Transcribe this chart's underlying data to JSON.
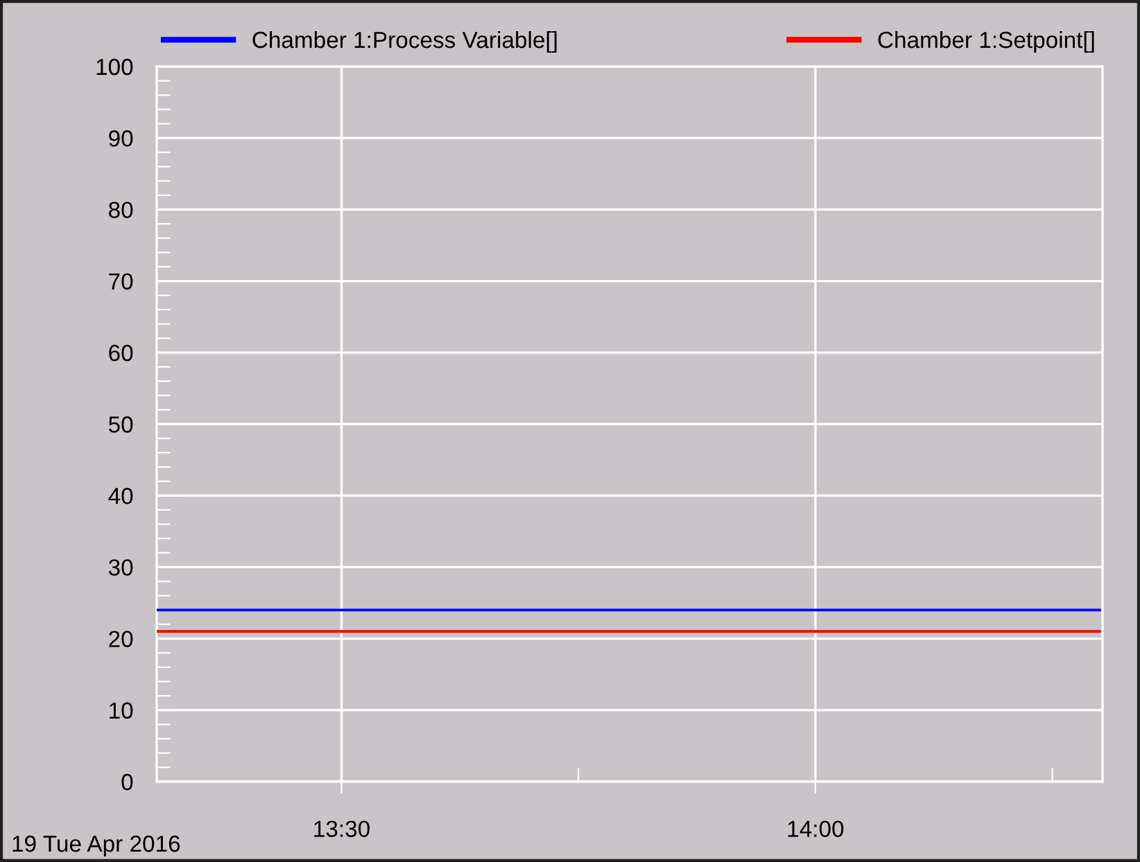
{
  "chart_data": {
    "type": "line",
    "x": [
      13.305,
      14.3
    ],
    "series": [
      {
        "name": "Chamber 1:Process Variable[]",
        "color": "#0000ff",
        "values": [
          24,
          24
        ]
      },
      {
        "name": "Chamber 1:Setpoint[]",
        "color": "#ff0000",
        "values": [
          21,
          21
        ]
      }
    ],
    "xlim": [
      13.305,
      14.303
    ],
    "xticks": [
      {
        "value": 13.5,
        "label": "13:30"
      },
      {
        "value": 13.75,
        "label": null
      },
      {
        "value": 14.0,
        "label": "14:00"
      },
      {
        "value": 14.25,
        "label": null
      }
    ],
    "ylim": [
      0,
      100
    ],
    "yticks": [
      0,
      {
        "value": 2,
        "label": null
      },
      {
        "value": 4,
        "label": null
      },
      {
        "value": 6,
        "label": null
      },
      {
        "value": 8,
        "label": null
      },
      10,
      {
        "value": 12,
        "label": null
      },
      {
        "value": 14,
        "label": null
      },
      {
        "value": 16,
        "label": null
      },
      {
        "value": 18,
        "label": null
      },
      20,
      {
        "value": 22,
        "label": null
      },
      {
        "value": 24,
        "label": null
      },
      {
        "value": 26,
        "label": null
      },
      {
        "value": 28,
        "label": null
      },
      30,
      {
        "value": 32,
        "label": null
      },
      {
        "value": 34,
        "label": null
      },
      {
        "value": 36,
        "label": null
      },
      {
        "value": 38,
        "label": null
      },
      40,
      {
        "value": 42,
        "label": null
      },
      {
        "value": 44,
        "label": null
      },
      {
        "value": 46,
        "label": null
      },
      {
        "value": 48,
        "label": null
      },
      50,
      {
        "value": 52,
        "label": null
      },
      {
        "value": 54,
        "label": null
      },
      {
        "value": 56,
        "label": null
      },
      {
        "value": 58,
        "label": null
      },
      60,
      {
        "value": 62,
        "label": null
      },
      {
        "value": 64,
        "label": null
      },
      {
        "value": 66,
        "label": null
      },
      {
        "value": 68,
        "label": null
      },
      70,
      {
        "value": 72,
        "label": null
      },
      {
        "value": 74,
        "label": null
      },
      {
        "value": 76,
        "label": null
      },
      {
        "value": 78,
        "label": null
      },
      80,
      {
        "value": 82,
        "label": null
      },
      {
        "value": 84,
        "label": null
      },
      {
        "value": 86,
        "label": null
      },
      {
        "value": 88,
        "label": null
      },
      90,
      {
        "value": 92,
        "label": null
      },
      {
        "value": 94,
        "label": null
      },
      {
        "value": 96,
        "label": null
      },
      {
        "value": 98,
        "label": null
      },
      100
    ],
    "grid": true,
    "legend": "top",
    "marker": "none",
    "line_style": "solid",
    "annotations": [
      "19 Tue Apr 2016"
    ]
  }
}
